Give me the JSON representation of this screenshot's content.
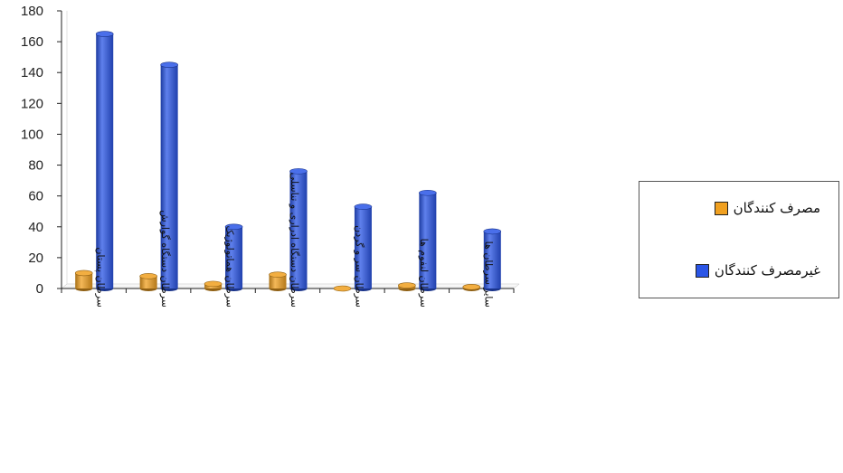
{
  "chart_data": {
    "type": "bar",
    "categories": [
      "سرطان پستان",
      "سرطان دستگاه گوارش",
      "سرطان هماتولوژیک",
      "سرطان دستگاه ادراری و تناسلی",
      "سرطان سر و گردن",
      "سرطان لنفوم ها",
      "سایر سرطان ها"
    ],
    "series": [
      {
        "name": "مصرف کنندگان",
        "values": [
          10,
          8,
          3,
          9,
          0,
          2,
          1
        ],
        "color": "#f0a020"
      },
      {
        "name": "غیرمصرف کنندگان",
        "values": [
          165,
          145,
          40,
          76,
          53,
          62,
          37
        ],
        "color": "#2a55e6"
      }
    ],
    "ylim": [
      0,
      180
    ],
    "yticks": [
      0,
      20,
      40,
      60,
      80,
      100,
      120,
      140,
      160,
      180
    ],
    "grid": false,
    "legend_position": "right",
    "bar_style": "3d-cylinder"
  }
}
